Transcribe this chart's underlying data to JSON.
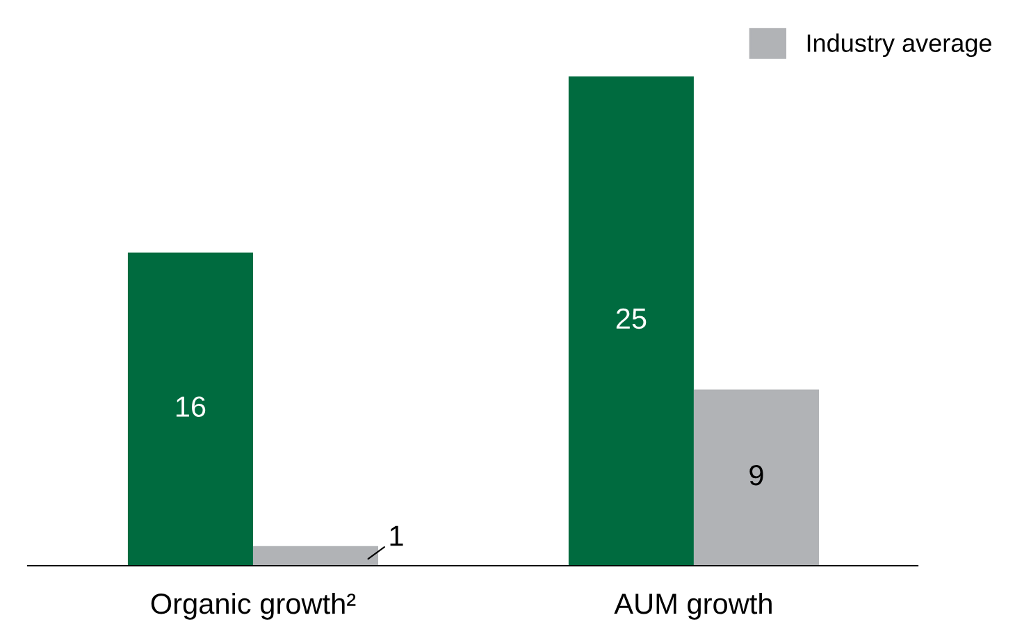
{
  "chart_data": {
    "type": "bar",
    "categories": [
      "Organic growth²",
      "AUM growth"
    ],
    "series": [
      {
        "color": "#006b3f",
        "values": [
          16,
          25
        ]
      },
      {
        "name": "Industry average",
        "color": "#b1b3b6",
        "values": [
          1,
          9
        ]
      }
    ],
    "data_labels": true,
    "legend": "top right",
    "grid": false
  }
}
